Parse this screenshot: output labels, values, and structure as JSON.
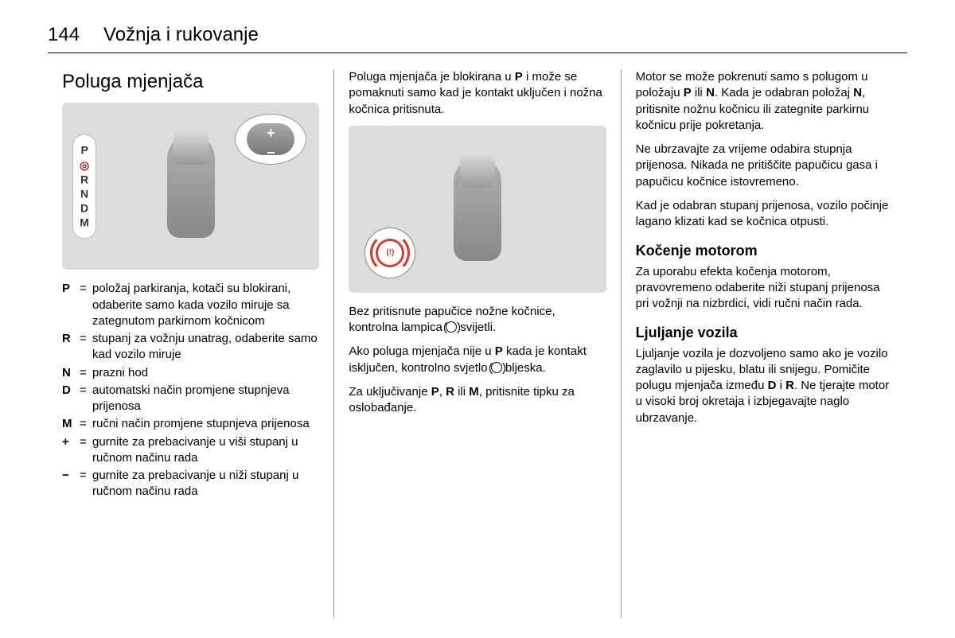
{
  "header": {
    "page_number": "144",
    "chapter_title": "Vožnja i rukovanje"
  },
  "col1": {
    "heading": "Poluga mjenjača",
    "prndm": [
      "P",
      "R",
      "N",
      "D",
      "M"
    ],
    "defs": [
      {
        "k": "P",
        "v": "položaj parkiranja, kotači su blokirani, odaberite samo kada vozilo miruje sa zategnutom parkirnom kočnicom"
      },
      {
        "k": "R",
        "v": "stupanj za vožnju unatrag, odaberite samo kad vozilo miruje"
      },
      {
        "k": "N",
        "v": "prazni hod"
      },
      {
        "k": "D",
        "v": "automatski način promjene stupnjeva prijenosa"
      },
      {
        "k": "M",
        "v": "ručni način promjene stupnjeva prijenosa"
      },
      {
        "k": "+",
        "v": "gurnite za prebacivanje u viši stupanj u ručnom načinu rada"
      },
      {
        "k": "−",
        "v": "gurnite za prebacivanje u niži stupanj u ručnom načinu rada"
      }
    ]
  },
  "col2": {
    "p1_a": "Poluga mjenjača je blokirana u ",
    "p1_b": "P",
    "p1_c": " i može se pomaknuti samo kad je kontakt uključen i nožna kočnica pritisnuta.",
    "p2_a": "Bez pritisnute papučice nožne kočnice, kontrolna lampica ",
    "p2_b": " svijetli.",
    "p3_a": "Ako poluga mjenjača nije u ",
    "p3_b": "P",
    "p3_c": " kada je kontakt isključen, kontrolno svjetlo ",
    "p3_d": " bljeska.",
    "p4_a": "Za uključivanje ",
    "p4_b": "P",
    "p4_c": ", ",
    "p4_d": "R",
    "p4_e": " ili ",
    "p4_f": "M",
    "p4_g": ", pritisnite tipku za oslobađanje."
  },
  "col3": {
    "p1_a": "Motor se može pokrenuti samo s polugom u položaju ",
    "p1_b": "P",
    "p1_c": " ili ",
    "p1_d": "N",
    "p1_e": ". Kada je odabran položaj ",
    "p1_f": "N",
    "p1_g": ", pritisnite nožnu kočnicu ili zategnite parkirnu kočnicu prije pokretanja.",
    "p2": "Ne ubrzavajte za vrijeme odabira stupnja prijenosa. Nikada ne pritiščite papučicu gasa i papučicu kočnice istovremeno.",
    "p3": "Kad je odabran stupanj prijenosa, vozilo počinje lagano klizati kad se kočnica otpusti.",
    "h3a": "Kočenje motorom",
    "p4": "Za uporabu efekta kočenja motorom, pravovremeno odaberite niži stupanj prijenosa pri vožnji na nizbrdici, vidi ručni način rada.",
    "h3b": "Ljuljanje vozila",
    "p5_a": "Ljuljanje vozila je dozvoljeno samo ako je vozilo zaglavilo u pijesku, blatu ili snijegu. Pomičite polugu mjenjača između ",
    "p5_b": "D",
    "p5_c": " i ",
    "p5_d": "R",
    "p5_e": ". Ne tjerajte motor u visoki broj okretaja i izbjegavajte naglo ubrzavanje."
  }
}
